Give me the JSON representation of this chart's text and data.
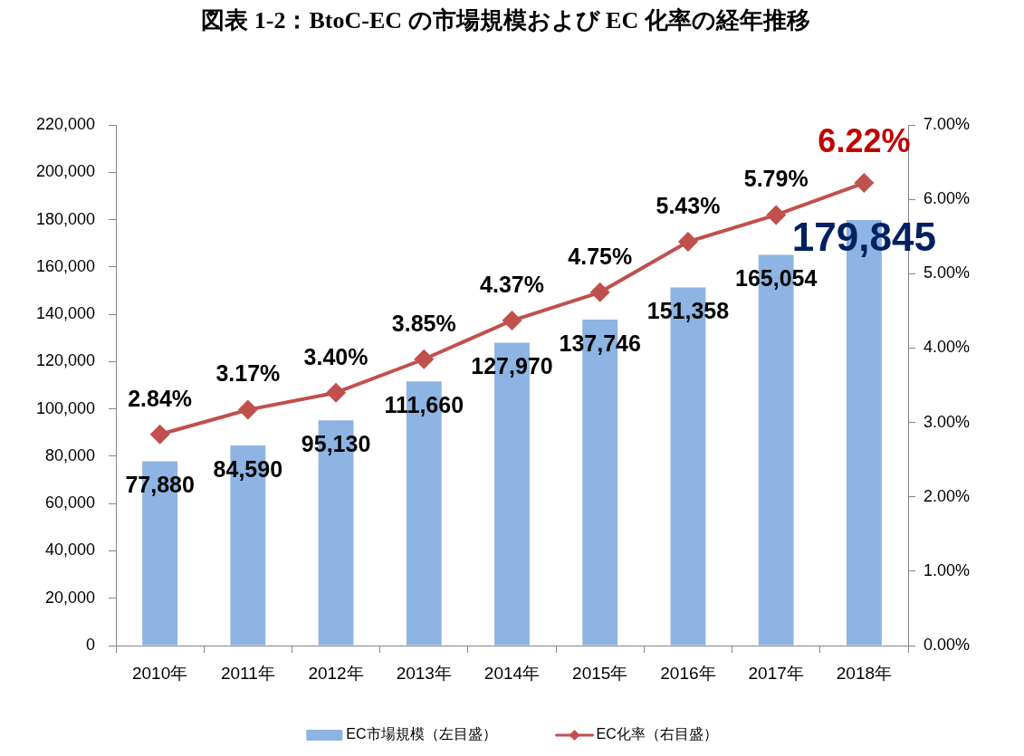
{
  "chart_data": {
    "type": "bar",
    "title": "図表 1-2：BtoC-EC の市場規模および EC 化率の経年推移",
    "categories": [
      "2010年",
      "2011年",
      "2012年",
      "2013年",
      "2014年",
      "2015年",
      "2016年",
      "2017年",
      "2018年"
    ],
    "series": [
      {
        "name": "EC市場規模（左目盛）",
        "type": "bar",
        "color": "#8db4e2",
        "values": [
          77880,
          84590,
          95130,
          111660,
          127970,
          137746,
          151358,
          165054,
          179845
        ],
        "value_labels": [
          "77,880",
          "84,590",
          "95,130",
          "111,660",
          "127,970",
          "137,746",
          "151,358",
          "165,054",
          "179,845"
        ]
      },
      {
        "name": "EC化率（右目盛）",
        "type": "line",
        "axis": "y2",
        "color": "#c0504d",
        "values": [
          2.84,
          3.17,
          3.4,
          3.85,
          4.37,
          4.75,
          5.43,
          5.79,
          6.22
        ],
        "value_labels": [
          "2.84%",
          "3.17%",
          "3.40%",
          "3.85%",
          "4.37%",
          "4.75%",
          "5.43%",
          "5.79%",
          "6.22%"
        ]
      }
    ],
    "ylim": [
      0,
      220000
    ],
    "yticks": [
      0,
      {
        "value": 20000,
        "label": "20,000"
      },
      {
        "value": 40000,
        "label": "40,000"
      },
      {
        "value": 60000,
        "label": "60,000"
      },
      {
        "value": 80000,
        "label": "80,000"
      },
      {
        "value": 100000,
        "label": "100,000"
      },
      {
        "value": 120000,
        "label": "120,000"
      },
      {
        "value": 140000,
        "label": "140,000"
      },
      {
        "value": 160000,
        "label": "160,000"
      },
      {
        "value": 180000,
        "label": "180,000"
      },
      {
        "value": 200000,
        "label": "200,000"
      },
      {
        "value": 220000,
        "label": "220,000"
      }
    ],
    "y2lim": [
      0,
      7
    ],
    "y2ticks": [
      {
        "value": 0,
        "label": "0.00%"
      },
      {
        "value": 1,
        "label": "1.00%"
      },
      {
        "value": 2,
        "label": "2.00%"
      },
      {
        "value": 3,
        "label": "3.00%"
      },
      {
        "value": 4,
        "label": "4.00%"
      },
      {
        "value": 5,
        "label": "5.00%"
      },
      {
        "value": 6,
        "label": "6.00%"
      },
      {
        "value": 7,
        "label": "7.00%"
      }
    ],
    "legend": "bottom",
    "marker": "diamond",
    "grid": false
  }
}
